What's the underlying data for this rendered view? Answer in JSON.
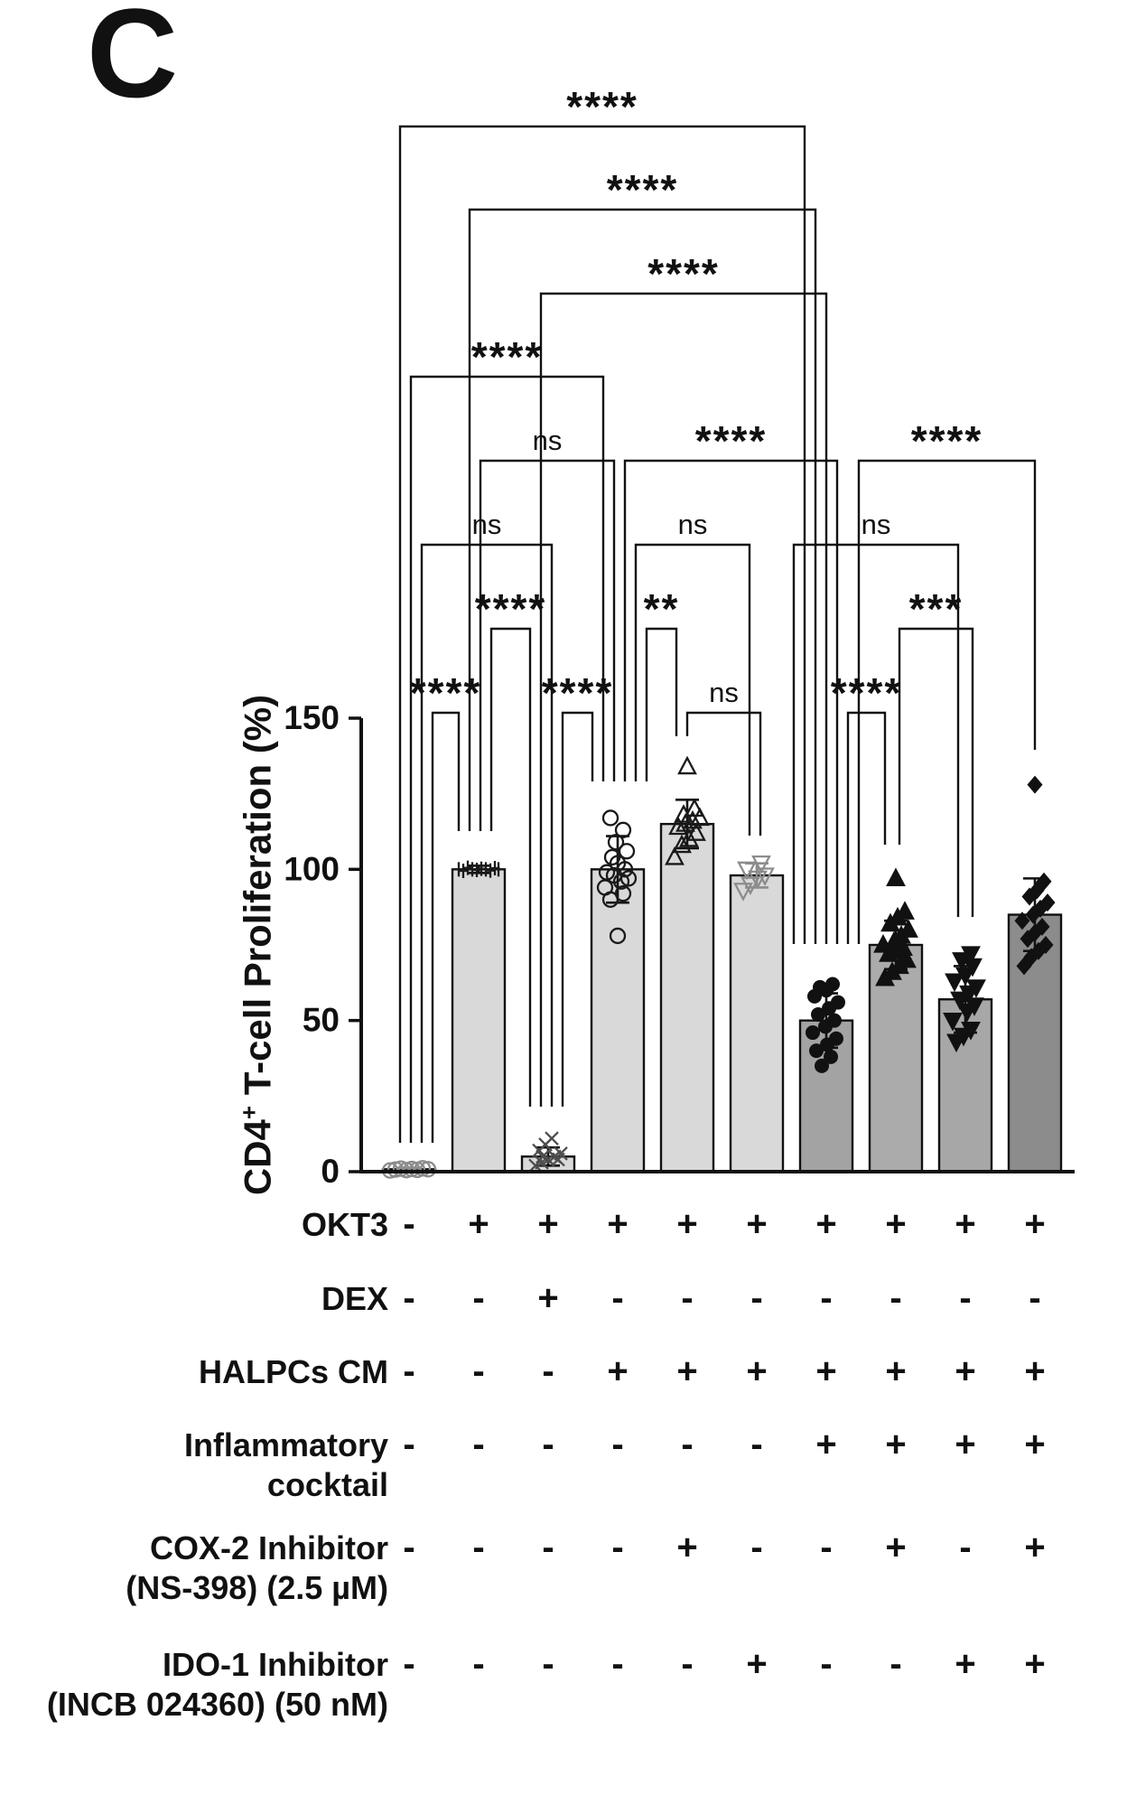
{
  "panel_label": "C",
  "chart_data": {
    "type": "bar",
    "overlay": "scatter",
    "title": "",
    "ylabel": {
      "pre": "CD4",
      "sup": "+",
      "post": " T-cell Proliferation (%)"
    },
    "ylim": [
      0,
      150
    ],
    "yticks": [
      0,
      50,
      100,
      150
    ],
    "grid": false,
    "legend": "none",
    "bars": [
      {
        "mean": 0.8,
        "sd": 0.5,
        "fill": "#d9d9d9",
        "marker": "circle-open",
        "color": "#8c8c8c",
        "err": "#8c8c8c",
        "points": [
          0.4,
          0.7,
          1.0,
          0.5,
          0.9,
          0.6,
          1.1,
          0.8
        ],
        "jitter": [
          -21,
          -15,
          -9,
          -3,
          3,
          9,
          15,
          21
        ]
      },
      {
        "mean": 100,
        "sd": 1.2,
        "fill": "#d9d9d9",
        "marker": "plus",
        "color": "#1a1a1a",
        "points": [
          100,
          99.5,
          100.5,
          100,
          99.8,
          100.2,
          100,
          99.6,
          100.4,
          100
        ],
        "jitter": [
          -22,
          -17,
          -12,
          -7,
          -2,
          3,
          8,
          13,
          18,
          22
        ]
      },
      {
        "mean": 5,
        "sd": 3,
        "fill": "#d9d9d9",
        "marker": "cross",
        "color": "#4d4d4d",
        "points": [
          2,
          3,
          4,
          5,
          6,
          7,
          9,
          11,
          4,
          5
        ],
        "jitter": [
          -14,
          -7,
          0,
          7,
          14,
          -10,
          -3,
          4,
          11,
          -6
        ]
      },
      {
        "mean": 100,
        "sd": 11,
        "fill": "#d9d9d9",
        "marker": "circle-open",
        "color": "#1a1a1a",
        "points": [
          78,
          90,
          92,
          94,
          96,
          97,
          98,
          99,
          100,
          102,
          104,
          106,
          109,
          113,
          117
        ],
        "jitter": [
          0,
          -8,
          6,
          -14,
          4,
          12,
          -4,
          -12,
          8,
          0,
          -6,
          10,
          -2,
          6,
          -8
        ]
      },
      {
        "mean": 115,
        "sd": 8,
        "fill": "#d9d9d9",
        "marker": "triangle-up-open",
        "color": "#1a1a1a",
        "points": [
          104,
          108,
          110,
          112,
          114,
          115,
          116,
          117,
          118,
          120,
          134
        ],
        "jitter": [
          -14,
          -6,
          2,
          10,
          -10,
          -2,
          6,
          14,
          -4,
          8,
          0
        ]
      },
      {
        "mean": 98,
        "sd": 4,
        "fill": "#d9d9d9",
        "marker": "triangle-down-open",
        "color": "#8c8c8c",
        "err": "#8c8c8c",
        "points": [
          93,
          95,
          97,
          98,
          100,
          102
        ],
        "jitter": [
          -15,
          -7,
          1,
          9,
          -11,
          5
        ]
      },
      {
        "mean": 50,
        "sd": 9,
        "fill": "#a3a3a3",
        "marker": "circle-filled",
        "color": "#111111",
        "points": [
          35,
          38,
          40,
          42,
          44,
          46,
          48,
          50,
          52,
          54,
          56,
          58,
          60,
          61,
          62
        ],
        "jitter": [
          -5,
          5,
          -11,
          1,
          11,
          -15,
          -1,
          9,
          -9,
          3,
          13,
          -13,
          0,
          -7,
          7
        ]
      },
      {
        "mean": 75,
        "sd": 8,
        "fill": "#ababab",
        "marker": "triangle-up-filled",
        "color": "#111111",
        "points": [
          64,
          66,
          68,
          70,
          72,
          73,
          74,
          75,
          76,
          78,
          80,
          82,
          84,
          86,
          97
        ],
        "jitter": [
          -12,
          -4,
          4,
          12,
          -8,
          0,
          8,
          -14,
          -2,
          6,
          14,
          -6,
          2,
          10,
          0
        ]
      },
      {
        "mean": 57,
        "sd": 11,
        "fill": "#a7a7a7",
        "marker": "triangle-down-filled",
        "color": "#111111",
        "points": [
          43,
          45,
          47,
          50,
          53,
          55,
          57,
          59,
          61,
          63,
          65,
          68,
          70,
          72
        ],
        "jitter": [
          -10,
          -2,
          6,
          -14,
          2,
          10,
          -6,
          4,
          12,
          -12,
          0,
          8,
          -4,
          6
        ]
      },
      {
        "mean": 85,
        "sd": 12,
        "fill": "#8c8c8c",
        "marker": "diamond-filled",
        "color": "#111111",
        "points": [
          68,
          71,
          73,
          75,
          77,
          79,
          81,
          83,
          85,
          87,
          89,
          91,
          93,
          96,
          128
        ],
        "jitter": [
          -12,
          -4,
          4,
          12,
          -8,
          0,
          8,
          -14,
          -2,
          6,
          14,
          -6,
          2,
          10,
          0
        ]
      }
    ],
    "brackets": [
      {
        "a": 1,
        "b": 7,
        "sig": "****",
        "row": 1,
        "ao": -10,
        "bo": -24
      },
      {
        "a": 2,
        "b": 7,
        "sig": "****",
        "row": 2,
        "ao": -10,
        "bo": -12
      },
      {
        "a": 3,
        "b": 7,
        "sig": "****",
        "row": 3,
        "ao": -8,
        "bo": 0
      },
      {
        "a": 1,
        "b": 4,
        "sig": "****",
        "row": 4,
        "ao": 2,
        "bo": -16
      },
      {
        "a": 2,
        "b": 4,
        "sig": "ns",
        "row": 5,
        "ao": 2,
        "bo": -4
      },
      {
        "a": 4,
        "b": 7,
        "sig": "****",
        "row": 5,
        "ao": 8,
        "bo": 12
      },
      {
        "a": 7,
        "b": 10,
        "sig": "****",
        "row": 5,
        "ao": 36,
        "bo": 0
      },
      {
        "a": 1,
        "b": 3,
        "sig": "ns",
        "row": 6,
        "ao": 14,
        "bo": 4
      },
      {
        "a": 4,
        "b": 6,
        "sig": "ns",
        "row": 6,
        "ao": 20,
        "bo": -8
      },
      {
        "a": 7,
        "b": 9,
        "sig": "ns",
        "row": 6,
        "ao": -36,
        "bo": -8
      },
      {
        "a": 2,
        "b": 3,
        "sig": "****",
        "row": 7,
        "ao": 14,
        "bo": -20
      },
      {
        "a": 4,
        "b": 5,
        "sig": "**",
        "row": 7,
        "ao": 32,
        "bo": -12
      },
      {
        "a": 8,
        "b": 9,
        "sig": "***",
        "row": 7,
        "ao": 4,
        "bo": 8
      },
      {
        "a": 1,
        "b": 2,
        "sig": "****",
        "row": 8,
        "ao": 26,
        "bo": -22
      },
      {
        "a": 3,
        "b": 4,
        "sig": "****",
        "row": 8,
        "ao": 16,
        "bo": -28
      },
      {
        "a": 5,
        "b": 6,
        "sig": "ns",
        "row": 8,
        "ao": 0,
        "bo": 4
      },
      {
        "a": 7,
        "b": 8,
        "sig": "****",
        "row": 8,
        "ao": 24,
        "bo": -12
      }
    ],
    "condition_matrix": {
      "rows": [
        {
          "label": [
            "OKT3"
          ],
          "values": [
            "-",
            "+",
            "+",
            "+",
            "+",
            "+",
            "+",
            "+",
            "+",
            "+"
          ]
        },
        {
          "label": [
            "DEX"
          ],
          "values": [
            "-",
            "-",
            "+",
            "-",
            "-",
            "-",
            "-",
            "-",
            "-",
            "-"
          ]
        },
        {
          "label": [
            "HALPCs CM"
          ],
          "values": [
            "-",
            "-",
            "-",
            "+",
            "+",
            "+",
            "+",
            "+",
            "+",
            "+"
          ]
        },
        {
          "label": [
            "Inflammatory",
            "cocktail"
          ],
          "values": [
            "-",
            "-",
            "-",
            "-",
            "-",
            "-",
            "+",
            "+",
            "+",
            "+"
          ]
        },
        {
          "label": [
            "COX-2 Inhibitor",
            "(NS-398) (2.5 µM)"
          ],
          "values": [
            "-",
            "-",
            "-",
            "-",
            "+",
            "-",
            "-",
            "+",
            "-",
            "+"
          ]
        },
        {
          "label": [
            "IDO-1 Inhibitor",
            "(INCB 024360) (50 nM)"
          ],
          "values": [
            "-",
            "-",
            "-",
            "-",
            "-",
            "+",
            "-",
            "-",
            "+",
            "+"
          ]
        }
      ]
    }
  }
}
